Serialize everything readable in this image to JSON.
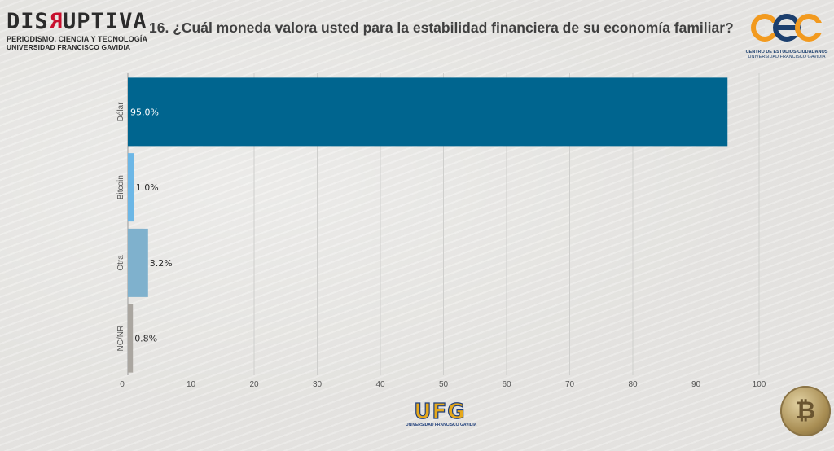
{
  "header": {
    "brand_word_pre": "DIS",
    "brand_word_flip": "R",
    "brand_word_post": "UPTIVA",
    "brand_tagline": "PERIODISMO, CIENCIA Y TECNOLOGÍA",
    "brand_university": "UNIVERSIDAD FRANCISCO GAVIDIA",
    "question": "16. ¿Cuál moneda valora usted para la estabilidad financiera de su economía familiar?",
    "cec_line1": "CENTRO DE ESTUDIOS CIUDADANOS",
    "cec_line2": "UNIVERSIDAD FRANCISCO GAVIDIA"
  },
  "footer": {
    "ufg_mark": "UFG",
    "ufg_name": "UNIVERSIDAD FRANCISCO GAVIDIA",
    "coin_glyph": "₿"
  },
  "chart_data": {
    "type": "bar",
    "orientation": "horizontal",
    "title": "16. ¿Cuál moneda valora usted para la estabilidad financiera de su economía familiar?",
    "categories": [
      "Dólar",
      "Bitcoin",
      "Otra",
      "NC/NR"
    ],
    "values": [
      95.0,
      1.0,
      3.2,
      0.8
    ],
    "data_labels": [
      "95.0%",
      "1.0%",
      "3.2%",
      "0.8%"
    ],
    "colors": [
      "#00658f",
      "#6cb7e6",
      "#7fb1cd",
      "#aaa6a0"
    ],
    "xlim": [
      0,
      100
    ],
    "xticks": [
      0,
      10,
      20,
      30,
      40,
      50,
      60,
      70,
      80,
      90,
      100
    ],
    "grid": true,
    "xlabel": "",
    "ylabel": ""
  }
}
